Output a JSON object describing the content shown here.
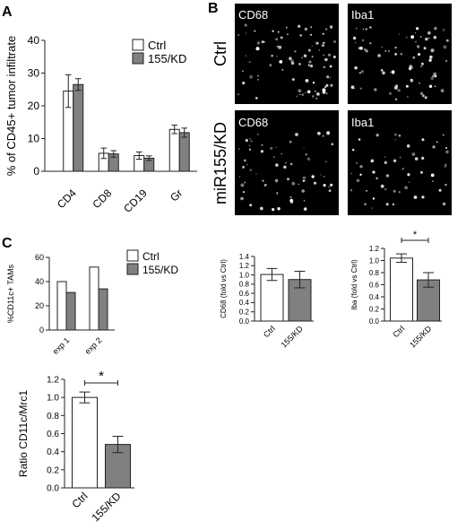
{
  "figure": {
    "panel_a_letter": "A",
    "panel_b_letter": "B",
    "panel_c_letter": "C",
    "micro_row_labels": [
      "Ctrl",
      "miR155/KD"
    ],
    "micro_tiles": [
      {
        "label": "CD68"
      },
      {
        "label": "Iba1"
      },
      {
        "label": "CD68"
      },
      {
        "label": "Iba1"
      }
    ],
    "colors": {
      "ctrl_fill": "#ffffff",
      "kd_fill": "#808080",
      "axis": "#222222"
    }
  },
  "chart_data": [
    {
      "id": "panel-a",
      "type": "bar",
      "ylabel": "% of CD45+ tumor infiltrate",
      "ylim": [
        0,
        40
      ],
      "yticks": [
        0,
        10,
        20,
        30,
        40
      ],
      "categories": [
        "CD4",
        "CD8",
        "CD19",
        "Gr"
      ],
      "series": [
        {
          "name": "Ctrl",
          "values": [
            24.5,
            5.5,
            4.8,
            12.8
          ],
          "errors": [
            5.0,
            1.6,
            1.1,
            1.3
          ]
        },
        {
          "name": "155/KD",
          "values": [
            26.5,
            5.3,
            4.0,
            11.8
          ],
          "errors": [
            1.8,
            1.0,
            0.7,
            1.4
          ]
        }
      ],
      "legend": "top-right"
    },
    {
      "id": "panel-b-cd68",
      "type": "bar",
      "ylabel": "CD68 (fold vs Ctrl)",
      "ylim": [
        0,
        1.4
      ],
      "yticks": [
        "0.0",
        "0.2",
        "0.4",
        "0.6",
        "0.8",
        "1.0",
        "1.2",
        "1.4"
      ],
      "categories": [
        "Ctrl",
        "155/KD"
      ],
      "values": [
        1.01,
        0.9
      ],
      "errors": [
        0.13,
        0.18
      ]
    },
    {
      "id": "panel-b-iba",
      "type": "bar",
      "ylabel": "Iba (fold vs Ctrl)",
      "ylim": [
        0,
        1.2
      ],
      "yticks": [
        "0.0",
        "0.2",
        "0.4",
        "0.6",
        "0.8",
        "1.0",
        "1.2"
      ],
      "categories": [
        "Ctrl",
        "155/KD"
      ],
      "values": [
        1.04,
        0.68
      ],
      "errors": [
        0.07,
        0.12
      ],
      "significance": "*"
    },
    {
      "id": "panel-c-top",
      "type": "bar",
      "ylabel": "%CD11c+ TAMs",
      "ylim": [
        0,
        60
      ],
      "yticks": [
        0,
        20,
        40,
        60
      ],
      "categories": [
        "exp 1",
        "exp 2"
      ],
      "series": [
        {
          "name": "Ctrl",
          "values": [
            40,
            52
          ]
        },
        {
          "name": "155/KD",
          "values": [
            31,
            34
          ]
        }
      ],
      "legend": "top-right"
    },
    {
      "id": "panel-c-bottom",
      "type": "bar",
      "ylabel": "Ratio CD11c/Mrc1",
      "ylim": [
        0,
        1.2
      ],
      "yticks": [
        "0.0",
        "0.2",
        "0.4",
        "0.6",
        "0.8",
        "1.0",
        "1.2"
      ],
      "categories": [
        "Ctrl",
        "155/KD"
      ],
      "values": [
        1.0,
        0.48
      ],
      "errors": [
        0.06,
        0.09
      ],
      "significance": "*"
    }
  ]
}
